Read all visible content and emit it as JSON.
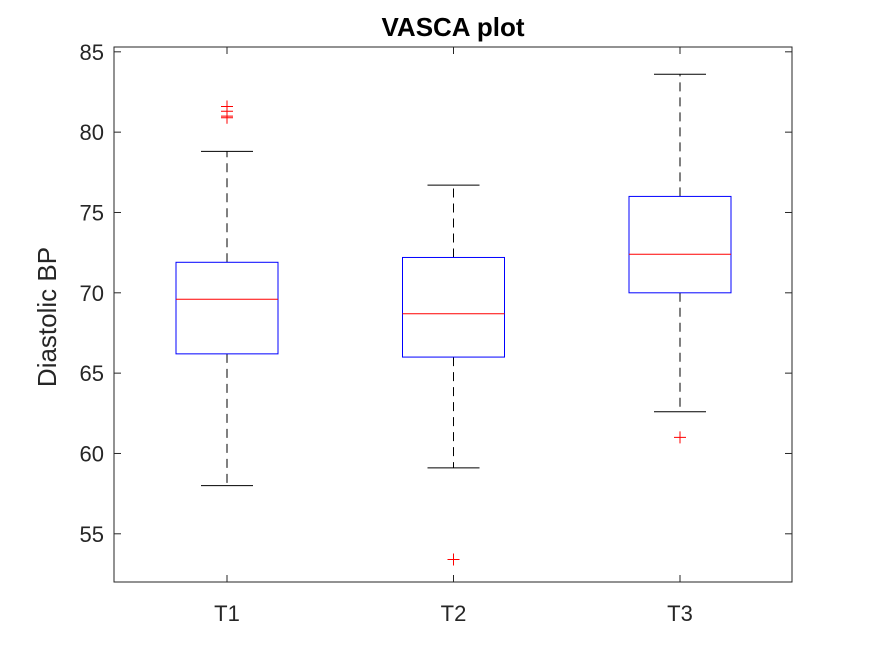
{
  "chart_data": {
    "type": "box",
    "title": "VASCA plot",
    "xlabel": "",
    "ylabel": "Diastolic BP",
    "ylim": [
      52,
      85.3
    ],
    "yticks": [
      55,
      60,
      65,
      70,
      75,
      80,
      85
    ],
    "grid": false,
    "categories": [
      "T1",
      "T2",
      "T3"
    ],
    "boxes": [
      {
        "category": "T1",
        "whisker_low": 58,
        "q1": 66.2,
        "median": 69.6,
        "q3": 71.9,
        "whisker_high": 78.8,
        "outliers": [
          80.9,
          81.0,
          81.3,
          81.6
        ]
      },
      {
        "category": "T2",
        "whisker_low": 59.1,
        "q1": 66.0,
        "median": 68.7,
        "q3": 72.2,
        "whisker_high": 76.7,
        "outliers": [
          53.4
        ]
      },
      {
        "category": "T3",
        "whisker_low": 62.6,
        "q1": 70.0,
        "median": 72.4,
        "q3": 76.0,
        "whisker_high": 83.6,
        "outliers": [
          61.0
        ]
      }
    ],
    "colors": {
      "box": "#0000ff",
      "median": "#ff0000",
      "whisker": "#000000",
      "outlier": "#ff0000",
      "axis": "#262626"
    }
  }
}
